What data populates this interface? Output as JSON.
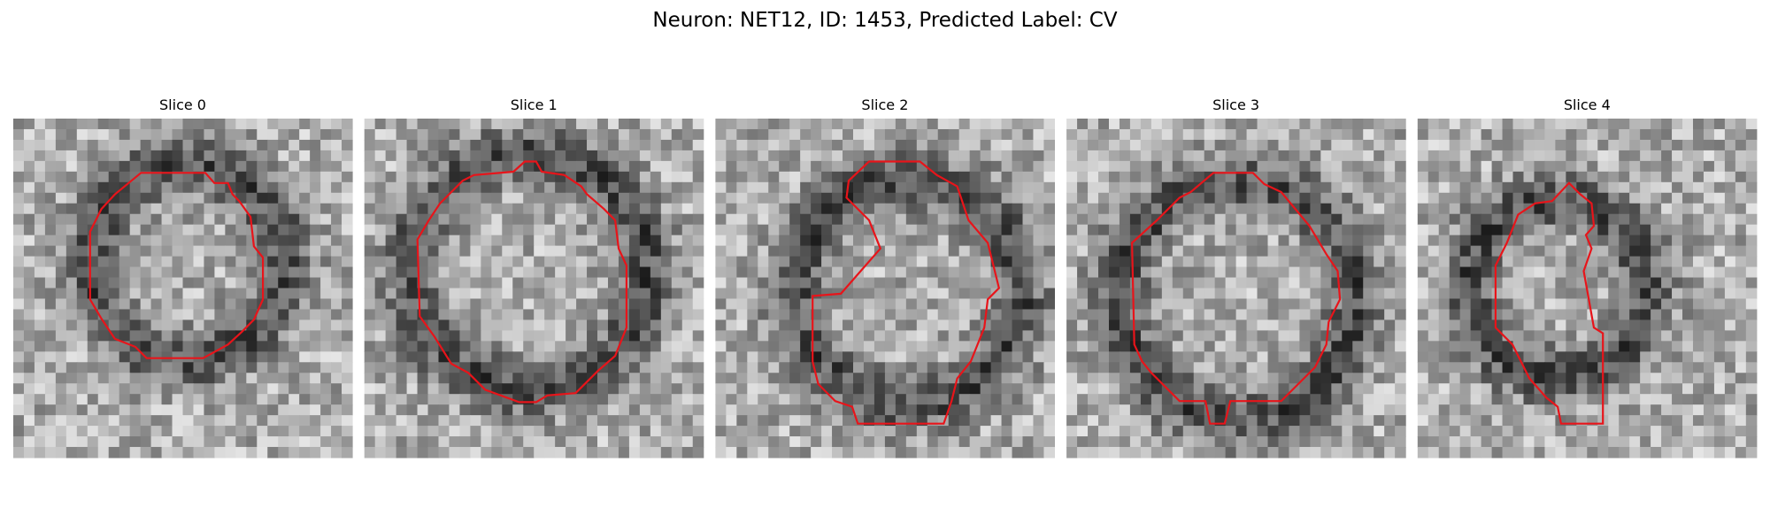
{
  "header": {
    "title": "Neuron: NET12, ID: 1453, Predicted Label: CV"
  },
  "panels": [
    {
      "title": "Slice 0"
    },
    {
      "title": "Slice 1"
    },
    {
      "title": "Slice 2"
    },
    {
      "title": "Slice 3"
    },
    {
      "title": "Slice 4"
    }
  ]
}
